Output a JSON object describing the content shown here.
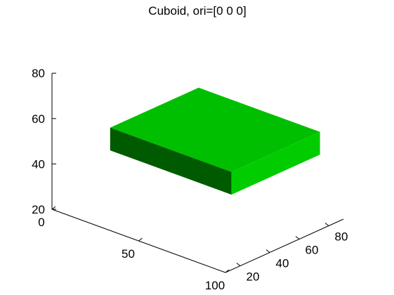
{
  "chart_data": {
    "type": "3d-surface",
    "title": "Cuboid, ori=[0 0 0]",
    "xlabel": "",
    "ylabel": "",
    "zlabel": "",
    "x_ticks": [
      0,
      50,
      100
    ],
    "y_ticks": [
      20,
      40,
      60,
      80
    ],
    "z_ticks": [
      20,
      40,
      60,
      80
    ],
    "xlim": [
      0,
      100
    ],
    "ylim": [
      10,
      90
    ],
    "zlim": [
      20,
      80
    ],
    "grid": false,
    "objects": [
      {
        "shape": "cuboid",
        "orientation": [
          0,
          0,
          0
        ],
        "x_range": [
          25,
          95
        ],
        "y_range": [
          20,
          80
        ],
        "z_range": [
          50,
          60
        ],
        "faces": {
          "top": "#00bf00",
          "front": "#00cc00",
          "side": "#005a00"
        }
      }
    ]
  }
}
